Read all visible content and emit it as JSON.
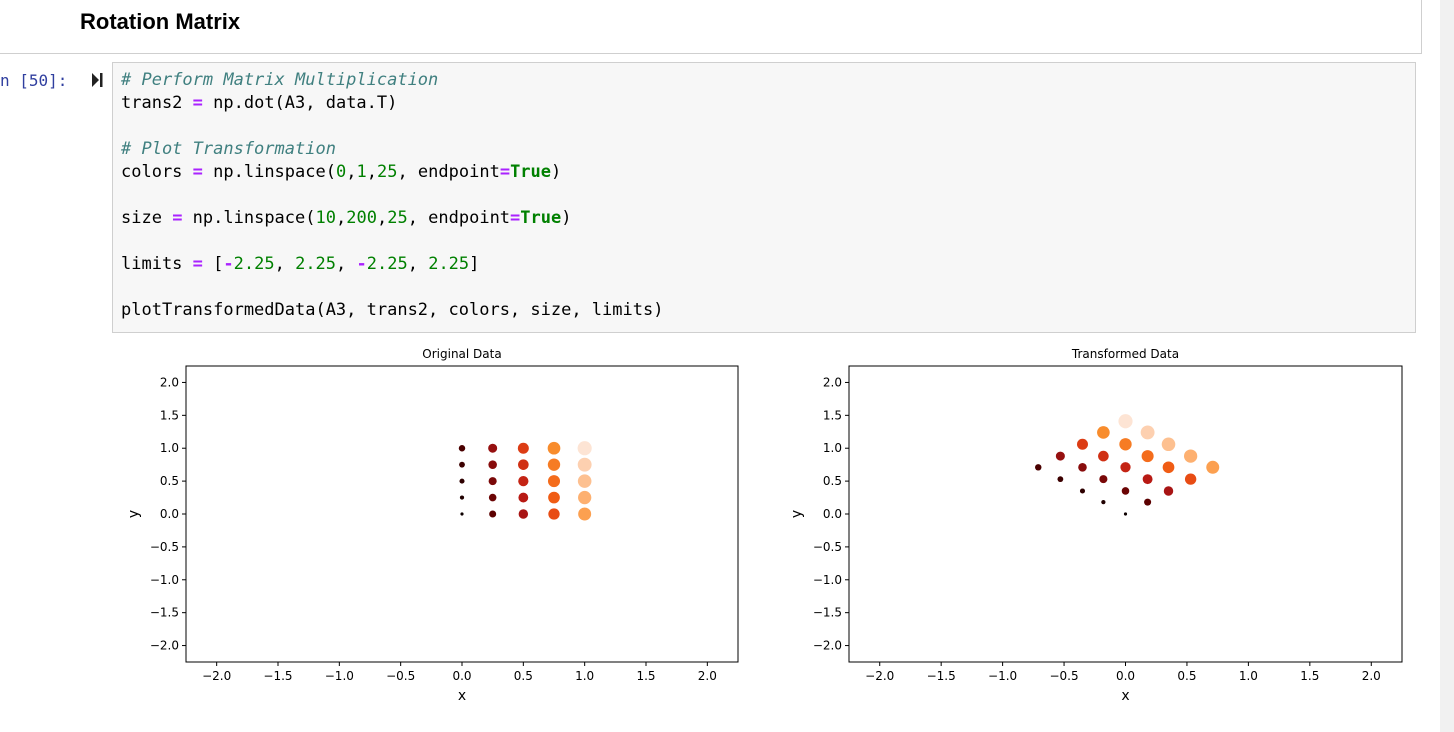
{
  "header": {
    "title": "Rotation Matrix"
  },
  "cell": {
    "prompt": "n [50]:",
    "code": [
      [
        "# Perform Matrix Multiplication"
      ],
      [
        "trans2 ",
        "=",
        " np.dot(A3, data.T)"
      ],
      [],
      [
        "# Plot Transformation"
      ],
      [
        "colors ",
        "=",
        " np.linspace(",
        "0",
        ",",
        "1",
        ",",
        "25",
        ", endpoint",
        "=",
        "True",
        ")"
      ],
      [],
      [
        "size ",
        "=",
        " np.linspace(",
        "10",
        ",",
        "200",
        ",",
        "25",
        ", endpoint",
        "=",
        "True",
        ")"
      ],
      [],
      [
        "limits ",
        "=",
        " [",
        "-",
        "2.25",
        ", ",
        "2.25",
        ", ",
        "-",
        "2.25",
        ", ",
        "2.25",
        "]"
      ],
      [],
      [
        "plotTransformedData(A3, trans2, colors, size, limits)"
      ]
    ]
  },
  "chart_data": [
    {
      "type": "scatter",
      "title": "Original Data",
      "xlabel": "x",
      "ylabel": "y",
      "xlim": [
        -2.25,
        2.25
      ],
      "ylim": [
        -2.25,
        2.25
      ],
      "xticks": [
        {
          "value": -2,
          "label": "−2.0"
        },
        {
          "value": -1.5,
          "label": "−1.5"
        },
        {
          "value": -1,
          "label": "−1.0"
        },
        {
          "value": -0.5,
          "label": "−0.5"
        },
        {
          "value": 0,
          "label": "0.0"
        },
        {
          "value": 0.5,
          "label": "0.5"
        },
        {
          "value": 1,
          "label": "1.0"
        },
        {
          "value": 1.5,
          "label": "1.5"
        },
        {
          "value": 2,
          "label": "2.0"
        }
      ],
      "yticks": [
        {
          "value": -2,
          "label": "−2.0"
        },
        {
          "value": -1.5,
          "label": "−1.5"
        },
        {
          "value": -1,
          "label": "−1.0"
        },
        {
          "value": -0.5,
          "label": "−0.5"
        },
        {
          "value": 0,
          "label": "0.0"
        },
        {
          "value": 0.5,
          "label": "0.5"
        },
        {
          "value": 1,
          "label": "1.0"
        },
        {
          "value": 1.5,
          "label": "1.5"
        },
        {
          "value": 2,
          "label": "2.0"
        }
      ],
      "x": [
        0,
        0,
        0,
        0,
        0,
        0.25,
        0.25,
        0.25,
        0.25,
        0.25,
        0.5,
        0.5,
        0.5,
        0.5,
        0.5,
        0.75,
        0.75,
        0.75,
        0.75,
        0.75,
        1,
        1,
        1,
        1,
        1
      ],
      "series": [
        {
          "values": [
            0,
            0.25,
            0.5,
            0.75,
            1,
            0,
            0.25,
            0.5,
            0.75,
            1,
            0,
            0.25,
            0.5,
            0.75,
            1,
            0,
            0.25,
            0.5,
            0.75,
            1,
            0,
            0.25,
            0.5,
            0.75,
            1
          ],
          "sizes": [
            10,
            17.9,
            25.8,
            33.8,
            41.7,
            49.6,
            57.5,
            65.4,
            73.3,
            81.3,
            89.2,
            97.1,
            105,
            112.9,
            120.8,
            128.8,
            136.7,
            144.6,
            152.5,
            160.4,
            168.3,
            176.3,
            184.2,
            192.1,
            200
          ],
          "colors": [
            "#0d0000",
            "#200000",
            "#2e0000",
            "#3c0000",
            "#4a0000",
            "#5c0000",
            "#6b0404",
            "#7a0808",
            "#880c0c",
            "#961010",
            "#a81414",
            "#b81a14",
            "#c42414",
            "#d03014",
            "#dc3c14",
            "#e84c14",
            "#f05c14",
            "#f46c1c",
            "#f67c24",
            "#f88c2c",
            "#fca050",
            "#fdb070",
            "#fdc090",
            "#fdd0b0",
            "#fde4d4"
          ]
        }
      ]
    },
    {
      "type": "scatter",
      "title": "Transformed Data",
      "xlabel": "x",
      "ylabel": "y",
      "xlim": [
        -2.25,
        2.25
      ],
      "ylim": [
        -2.25,
        2.25
      ],
      "xticks": [
        {
          "value": -2,
          "label": "−2.0"
        },
        {
          "value": -1.5,
          "label": "−1.5"
        },
        {
          "value": -1,
          "label": "−1.0"
        },
        {
          "value": -0.5,
          "label": "−0.5"
        },
        {
          "value": 0,
          "label": "0.0"
        },
        {
          "value": 0.5,
          "label": "0.5"
        },
        {
          "value": 1,
          "label": "1.0"
        },
        {
          "value": 1.5,
          "label": "1.5"
        },
        {
          "value": 2,
          "label": "2.0"
        }
      ],
      "yticks": [
        {
          "value": -2,
          "label": "−2.0"
        },
        {
          "value": -1.5,
          "label": "−1.5"
        },
        {
          "value": -1,
          "label": "−1.0"
        },
        {
          "value": -0.5,
          "label": "−0.5"
        },
        {
          "value": 0,
          "label": "0.0"
        },
        {
          "value": 0.5,
          "label": "0.5"
        },
        {
          "value": 1,
          "label": "1.0"
        },
        {
          "value": 1.5,
          "label": "1.5"
        },
        {
          "value": 2,
          "label": "2.0"
        }
      ],
      "x": [
        0,
        -0.18,
        -0.35,
        -0.53,
        -0.71,
        0.18,
        0,
        -0.18,
        -0.35,
        -0.53,
        0.35,
        0.18,
        0,
        -0.18,
        -0.35,
        0.53,
        0.35,
        0.18,
        0,
        -0.18,
        0.71,
        0.53,
        0.35,
        0.18,
        0
      ],
      "series": [
        {
          "values": [
            0,
            0.18,
            0.35,
            0.53,
            0.71,
            0.18,
            0.35,
            0.53,
            0.71,
            0.88,
            0.35,
            0.53,
            0.71,
            0.88,
            1.06,
            0.53,
            0.71,
            0.88,
            1.06,
            1.24,
            0.71,
            0.88,
            1.06,
            1.24,
            1.41
          ],
          "sizes": [
            10,
            17.9,
            25.8,
            33.8,
            41.7,
            49.6,
            57.5,
            65.4,
            73.3,
            81.3,
            89.2,
            97.1,
            105,
            112.9,
            120.8,
            128.8,
            136.7,
            144.6,
            152.5,
            160.4,
            168.3,
            176.3,
            184.2,
            192.1,
            200
          ],
          "colors": [
            "#0d0000",
            "#200000",
            "#2e0000",
            "#3c0000",
            "#4a0000",
            "#5c0000",
            "#6b0404",
            "#7a0808",
            "#880c0c",
            "#961010",
            "#a81414",
            "#b81a14",
            "#c42414",
            "#d03014",
            "#dc3c14",
            "#e84c14",
            "#f05c14",
            "#f46c1c",
            "#f67c24",
            "#f88c2c",
            "#fca050",
            "#fdb070",
            "#fdc090",
            "#fdd0b0",
            "#fde4d4"
          ]
        }
      ]
    }
  ]
}
